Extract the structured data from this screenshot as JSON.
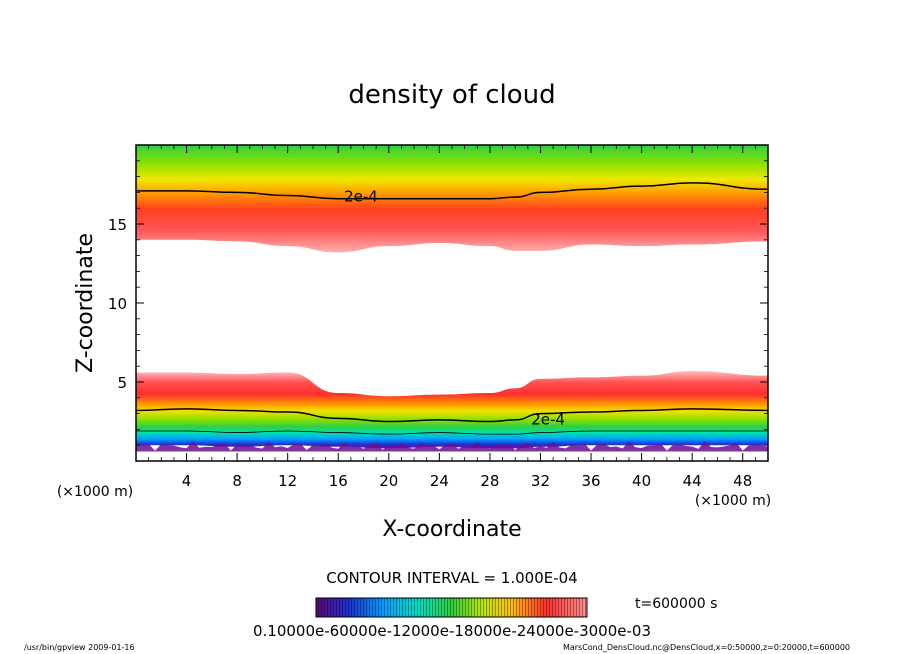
{
  "chart_data": {
    "type": "heatmap",
    "title": "density of cloud",
    "xlabel": "X-coordinate",
    "ylabel": "Z-coordinate",
    "x_unit": "(×1000 m)",
    "z_unit": "(×1000 m)",
    "xlim": [
      0,
      50
    ],
    "ylim": [
      0,
      20
    ],
    "x_ticks": [
      "4",
      "8",
      "12",
      "16",
      "20",
      "24",
      "28",
      "32",
      "36",
      "40",
      "44",
      "48"
    ],
    "y_ticks": [
      "5",
      "10",
      "15"
    ],
    "contour_label": "2e-4",
    "contour_interval_text": "CONTOUR INTERVAL = 1.000E-04",
    "time_label": "t=600000 s",
    "colorbar_labels_text": "0.10000e-60000e-12000e-18000e-24000e-3000e-03",
    "colorscale": [
      "#6a0f8f",
      "#2030d0",
      "#00a0ff",
      "#00e0c0",
      "#30d040",
      "#a0e000",
      "#f0f000",
      "#ffa000",
      "#ff3030",
      "#ff9090"
    ],
    "upper_layer": {
      "bottom_z": [
        14.0,
        14.0,
        13.9,
        13.6,
        13.2,
        13.6,
        13.8,
        13.6,
        13.3,
        13.3,
        13.7,
        13.6,
        13.7,
        13.9
      ],
      "peak_z": [
        15.1,
        15.1,
        15.0,
        14.8,
        14.5,
        14.7,
        14.9,
        14.7,
        14.5,
        14.5,
        14.9,
        14.8,
        14.9,
        15.1
      ],
      "contour_2e-4_z": [
        17.1,
        17.1,
        17.0,
        16.8,
        16.6,
        16.6,
        16.6,
        16.6,
        16.7,
        17.0,
        17.2,
        17.4,
        17.6,
        17.2
      ],
      "x": [
        0,
        4,
        8,
        12,
        16,
        20,
        24,
        28,
        30,
        32,
        36,
        40,
        44,
        50
      ]
    },
    "lower_layer": {
      "top_z": [
        5.6,
        5.6,
        5.5,
        5.6,
        4.3,
        4.1,
        4.2,
        4.3,
        4.6,
        5.2,
        5.3,
        5.4,
        5.7,
        5.4
      ],
      "peak_z": [
        4.5,
        4.4,
        4.3,
        4.3,
        3.5,
        3.3,
        3.3,
        3.5,
        3.7,
        4.2,
        4.2,
        4.4,
        4.6,
        4.4
      ],
      "contour_2e-4_z": [
        3.2,
        3.3,
        3.2,
        3.1,
        2.7,
        2.5,
        2.6,
        2.5,
        2.6,
        3.0,
        3.1,
        3.2,
        3.3,
        3.2
      ],
      "bottom_z": [
        1.0,
        1.0,
        0.9,
        1.0,
        0.9,
        0.8,
        0.9,
        0.8,
        0.8,
        0.9,
        1.0,
        1.0,
        1.0,
        1.0
      ],
      "x": [
        0,
        4,
        8,
        12,
        16,
        20,
        24,
        28,
        30,
        32,
        36,
        40,
        44,
        50
      ]
    }
  },
  "footer": {
    "left_text": "/usr/bin/gpview  2009-01-16",
    "right_text": "MarsCond_DensCloud.nc@DensCloud,x=0:50000,z=0:20000,t=600000"
  }
}
